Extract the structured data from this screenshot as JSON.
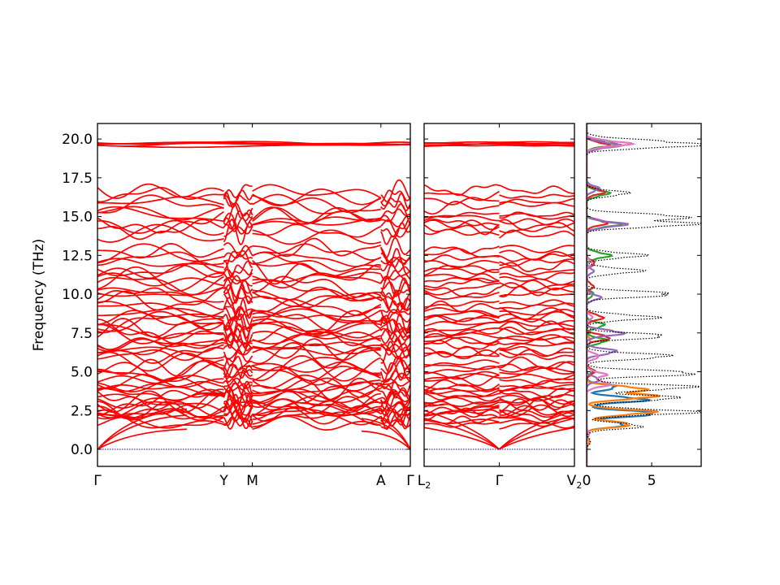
{
  "chart_data": [
    {
      "type": "line",
      "panel": "band-structure-1",
      "ylabel": "Frequency (THz)",
      "ylim": [
        -1.1,
        21.0
      ],
      "yticks": [
        "0.0",
        "2.5",
        "5.0",
        "7.5",
        "10.0",
        "12.5",
        "15.0",
        "17.5",
        "20.0"
      ],
      "ytick_values": [
        0,
        2.5,
        5,
        7.5,
        10,
        12.5,
        15,
        17.5,
        20
      ],
      "xlim": [
        0,
        1
      ],
      "xticks": [
        {
          "label": "Γ",
          "x": 0.0
        },
        {
          "label": "Y",
          "x": 0.404
        },
        {
          "label": "M",
          "x": 0.495
        },
        {
          "label": "A",
          "x": 0.906
        },
        {
          "label": "Γ",
          "x": 1.0
        }
      ],
      "band_color": "#ff0000",
      "zero_line_color": "#0000ff",
      "acoustic_endpoints_thz": [
        0,
        0
      ],
      "top_band_group_thz": [
        19.5,
        19.9
      ],
      "grid": false
    },
    {
      "type": "line",
      "panel": "band-structure-2",
      "ylim": [
        -1.1,
        21.0
      ],
      "xlim": [
        0,
        1
      ],
      "xticks": [
        {
          "label": "L",
          "sub": "2",
          "x": 0.0
        },
        {
          "label": "Γ",
          "x": 0.5
        },
        {
          "label": "V",
          "sub": "2",
          "x": 1.0
        }
      ],
      "band_color": "#ff0000",
      "zero_line_color": "#0000ff",
      "grid": false
    },
    {
      "type": "line",
      "panel": "density-of-states",
      "orientation": "horizontal",
      "ylim": [
        -1.1,
        21.0
      ],
      "xlim": [
        0,
        8.8
      ],
      "xticks": [
        "0",
        "5"
      ],
      "xtick_values": [
        0,
        5
      ],
      "series": [
        {
          "color": "#1f77b4",
          "style": "solid",
          "peaks": [
            [
              0.5,
              0.2
            ],
            [
              1.6,
              2.9
            ],
            [
              2.3,
              5.3
            ],
            [
              3.2,
              4.4
            ],
            [
              4.0,
              2.2
            ],
            [
              5.0,
              0.5
            ],
            [
              7.0,
              0.3
            ]
          ]
        },
        {
          "color": "#ff7f0e",
          "style": "solid",
          "peaks": [
            [
              0.5,
              0.2
            ],
            [
              1.6,
              3.3
            ],
            [
              2.4,
              4.9
            ],
            [
              3.4,
              4.9
            ],
            [
              3.9,
              4.2
            ],
            [
              5.0,
              0.5
            ],
            [
              7.0,
              0.3
            ]
          ]
        },
        {
          "color": "#2ca02c",
          "style": "solid",
          "peaks": [
            [
              5.0,
              0.4
            ],
            [
              7.0,
              1.5
            ],
            [
              8.0,
              1.3
            ],
            [
              10.0,
              0.5
            ],
            [
              12.5,
              1.7
            ],
            [
              14.5,
              2.4
            ],
            [
              16.5,
              1.6
            ],
            [
              19.7,
              2.3
            ]
          ]
        },
        {
          "color": "#d62728",
          "style": "solid",
          "peaks": [
            [
              5.0,
              0.6
            ],
            [
              7.2,
              1.7
            ],
            [
              8.5,
              1.2
            ],
            [
              10.5,
              0.5
            ],
            [
              12.0,
              0.6
            ],
            [
              14.6,
              1.5
            ],
            [
              16.6,
              1.3
            ],
            [
              19.6,
              1.6
            ]
          ]
        },
        {
          "color": "#9467bd",
          "style": "solid",
          "peaks": [
            [
              4.5,
              0.9
            ],
            [
              6.3,
              2.2
            ],
            [
              7.5,
              2.7
            ],
            [
              9.8,
              1.0
            ],
            [
              11.5,
              0.5
            ],
            [
              14.5,
              2.8
            ],
            [
              16.8,
              0.9
            ],
            [
              19.6,
              2.4
            ]
          ]
        },
        {
          "color": "#e377c2",
          "style": "solid",
          "peaks": [
            [
              1.0,
              0.2
            ],
            [
              4.2,
              1.7
            ],
            [
              4.8,
              1.4
            ],
            [
              6.0,
              0.9
            ],
            [
              8.5,
              0.4
            ],
            [
              12.0,
              0.4
            ],
            [
              19.7,
              3.1
            ]
          ]
        },
        {
          "color": "#000000",
          "style": "dotted",
          "peaks": [
            [
              0.5,
              0.3
            ],
            [
              1.5,
              4.2
            ],
            [
              2.4,
              8.2
            ],
            [
              3.3,
              6.9
            ],
            [
              4.0,
              8.0
            ],
            [
              4.9,
              8.3
            ],
            [
              6.0,
              6.3
            ],
            [
              7.3,
              6.0
            ],
            [
              8.5,
              5.1
            ],
            [
              10.0,
              6.6
            ],
            [
              11.5,
              4.0
            ],
            [
              12.5,
              4.2
            ],
            [
              14.5,
              7.9
            ],
            [
              15.0,
              7.2
            ],
            [
              16.5,
              3.1
            ],
            [
              19.6,
              8.2
            ],
            [
              19.9,
              3.0
            ]
          ]
        }
      ],
      "grid": false
    }
  ]
}
